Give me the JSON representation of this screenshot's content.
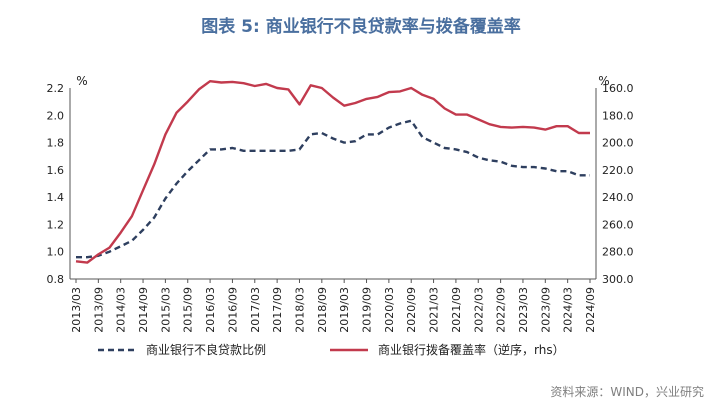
{
  "title": "图表 5:  商业银行不良贷款率与拨备覆盖率",
  "source": "资料来源：WIND，兴业研究",
  "chart_data": {
    "type": "line",
    "left_axis": {
      "unit": "%",
      "ylim": [
        0.8,
        2.2
      ],
      "ticks": [
        "0.8",
        "1.0",
        "1.2",
        "1.4",
        "1.6",
        "1.8",
        "2.0",
        "2.2"
      ]
    },
    "right_axis": {
      "unit": "%",
      "ylim": [
        300,
        160
      ],
      "inverted": true,
      "ticks": [
        "160.0",
        "180.0",
        "200.0",
        "220.0",
        "240.0",
        "260.0",
        "280.0",
        "300.0"
      ]
    },
    "x_tick_labels": [
      "2013/03",
      "2013/09",
      "2014/03",
      "2014/09",
      "2015/03",
      "2015/09",
      "2016/03",
      "2016/09",
      "2017/03",
      "2017/09",
      "2018/03",
      "2018/09",
      "2019/03",
      "2019/09",
      "2020/03",
      "2020/09",
      "2021/03",
      "2021/09",
      "2022/03",
      "2022/09",
      "2023/03",
      "2023/09",
      "2024/03",
      "2024/09"
    ],
    "x": [
      "2013/03",
      "2013/06",
      "2013/09",
      "2013/12",
      "2014/03",
      "2014/06",
      "2014/09",
      "2014/12",
      "2015/03",
      "2015/06",
      "2015/09",
      "2015/12",
      "2016/03",
      "2016/06",
      "2016/09",
      "2016/12",
      "2017/03",
      "2017/06",
      "2017/09",
      "2017/12",
      "2018/03",
      "2018/06",
      "2018/09",
      "2018/12",
      "2019/03",
      "2019/06",
      "2019/09",
      "2019/12",
      "2020/03",
      "2020/06",
      "2020/09",
      "2020/12",
      "2021/03",
      "2021/06",
      "2021/09",
      "2021/12",
      "2022/03",
      "2022/06",
      "2022/09",
      "2022/12",
      "2023/03",
      "2023/06",
      "2023/09",
      "2023/12",
      "2024/03",
      "2024/06",
      "2024/09"
    ],
    "series": [
      {
        "name": "商业银行不良贷款比例",
        "axis": "left",
        "color": "#2e3f5f",
        "dash": true,
        "values": [
          0.96,
          0.96,
          0.97,
          1.0,
          1.04,
          1.08,
          1.16,
          1.25,
          1.39,
          1.5,
          1.59,
          1.67,
          1.75,
          1.75,
          1.76,
          1.74,
          1.74,
          1.74,
          1.74,
          1.74,
          1.75,
          1.86,
          1.87,
          1.83,
          1.8,
          1.81,
          1.86,
          1.86,
          1.91,
          1.94,
          1.96,
          1.84,
          1.8,
          1.76,
          1.75,
          1.73,
          1.69,
          1.67,
          1.66,
          1.63,
          1.62,
          1.62,
          1.61,
          1.59,
          1.59,
          1.56,
          1.56
        ]
      },
      {
        "name": "商业银行拨备覆盖率（逆序，rhs）",
        "axis": "right",
        "color": "#c23a4d",
        "dash": false,
        "values": [
          287.0,
          288.0,
          282.0,
          277.0,
          266.0,
          254.0,
          235.0,
          216.0,
          194.0,
          178.0,
          170.0,
          161.0,
          155.0,
          156.0,
          155.5,
          156.5,
          158.5,
          157.0,
          160.0,
          161.0,
          172.0,
          158.0,
          160.0,
          167.0,
          173.0,
          171.0,
          168.0,
          166.5,
          163.0,
          162.5,
          160.0,
          165.0,
          168.0,
          175.0,
          179.5,
          179.5,
          183.0,
          186.5,
          188.5,
          189.0,
          188.5,
          189.0,
          190.5,
          188.0,
          188.0,
          193.0,
          193.0
        ]
      }
    ],
    "legend_position": "bottom",
    "grid": false
  }
}
